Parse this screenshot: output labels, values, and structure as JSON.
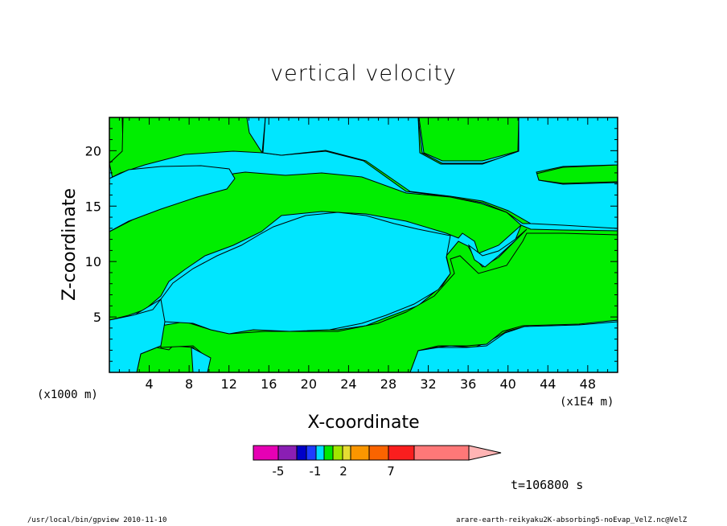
{
  "chart_data": {
    "type": "heatmap",
    "title": "vertical velocity",
    "xlabel": "X-coordinate",
    "ylabel": "Z-coordinate",
    "x_unit": "(x1000 m)",
    "x_scale": "(x1E4 m)",
    "xlim": [
      0,
      51
    ],
    "ylim": [
      0,
      23
    ],
    "x_ticks": [
      "4",
      "8",
      "12",
      "16",
      "20",
      "24",
      "28",
      "32",
      "36",
      "40",
      "44",
      "48"
    ],
    "y_ticks": [
      "5",
      "10",
      "15",
      "20"
    ],
    "colorbar": {
      "labels": [
        "-5",
        "-1",
        "2",
        "7"
      ],
      "label_positions": [
        -5,
        -1,
        2,
        7
      ],
      "colors": [
        "#e600b4",
        "#8a1eb4",
        "#0000c8",
        "#1e3cff",
        "#00dcff",
        "#00e600",
        "#a0e600",
        "#e6dc32",
        "#fa9600",
        "#fa6400",
        "#fa1e1e",
        "#ff7878",
        "#ffb4b4"
      ]
    },
    "regions": [
      {
        "name": "negative",
        "color": "#00e6ff"
      },
      {
        "name": "positive",
        "color": "#00ee00"
      }
    ]
  },
  "time_label": "t=106800 s",
  "footer": {
    "left": "/usr/local/bin/gpview  2010-11-10",
    "right": "arare-earth-reikyaku2K-absorbing5-noEvap_VelZ.nc@VelZ"
  }
}
